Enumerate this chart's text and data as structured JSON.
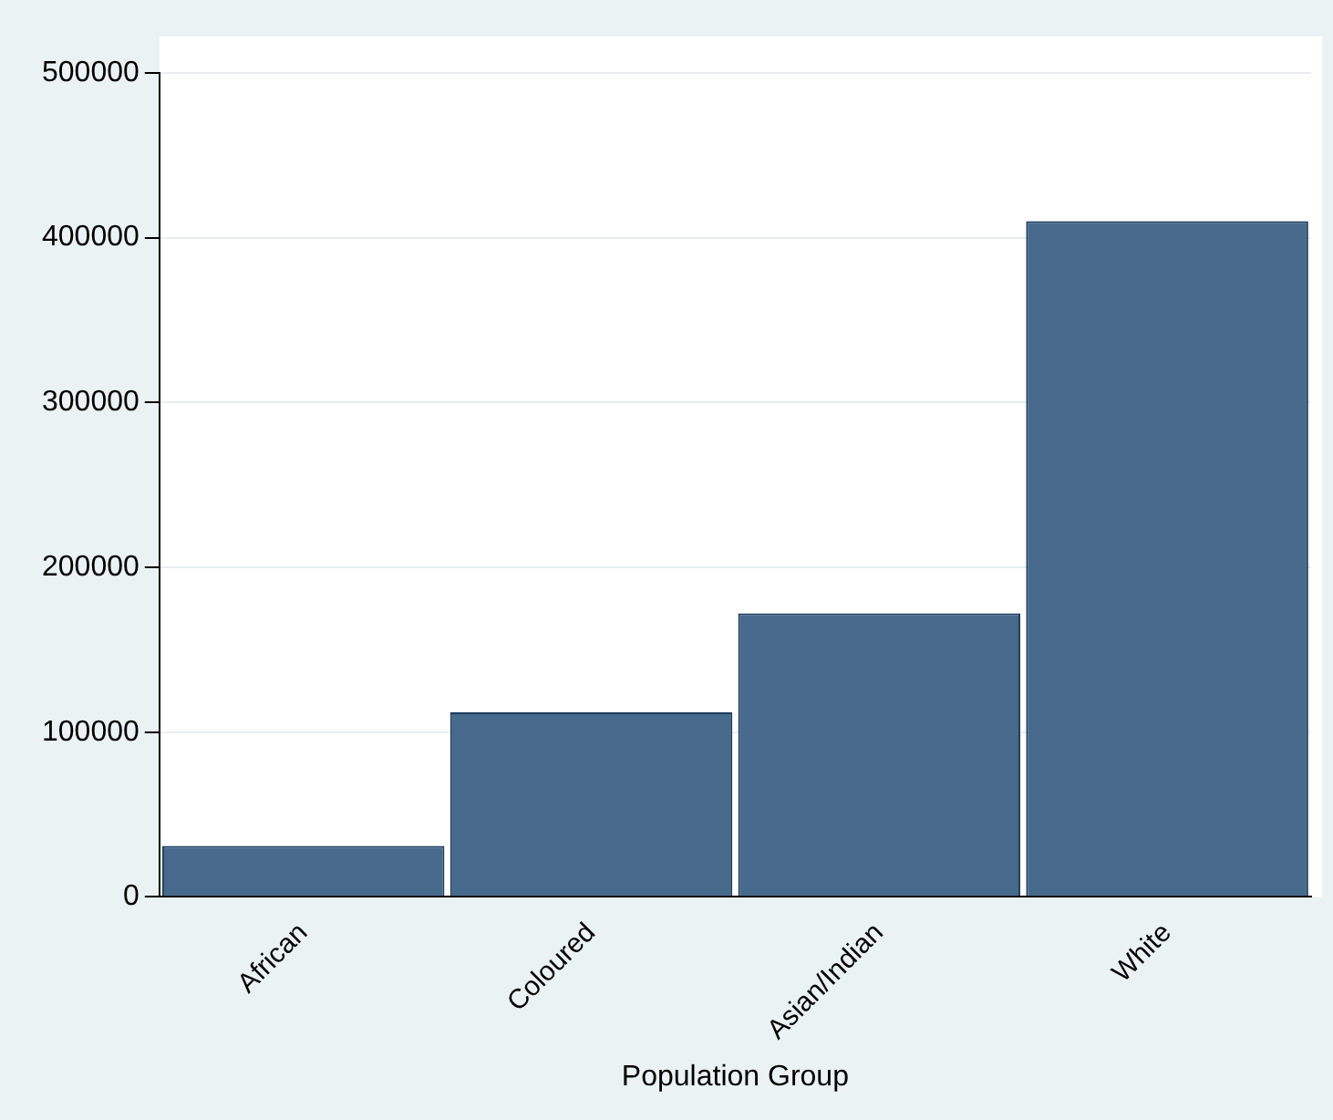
{
  "chart_data": {
    "type": "bar",
    "xlabel": "Population Group",
    "categories": [
      "African",
      "Coloured",
      "Asian/Indian",
      "White"
    ],
    "values": [
      31000,
      112000,
      172000,
      410000
    ],
    "color": "#476a8c",
    "ylim": [
      0,
      500000
    ],
    "yticks": [
      0,
      100000,
      200000,
      300000,
      400000,
      500000
    ],
    "grid": "y"
  }
}
